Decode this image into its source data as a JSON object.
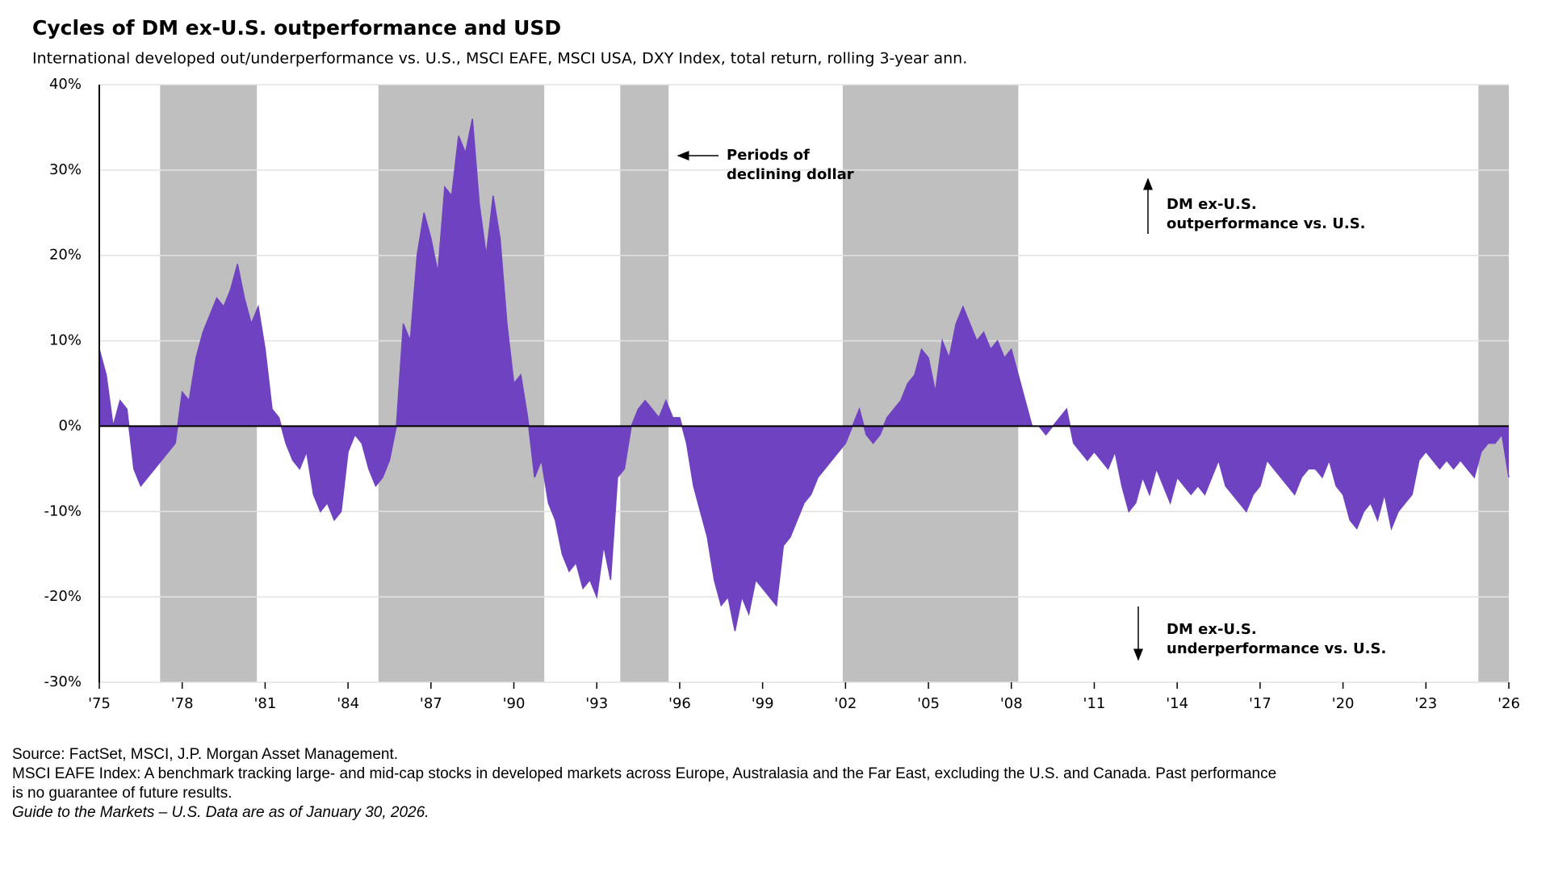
{
  "chart_data": {
    "type": "area",
    "title": "Cycles of DM ex-U.S. outperformance and USD",
    "subtitle": "International developed out/underperformance vs. U.S., MSCI EAFE, MSCI USA, DXY Index, total return, rolling 3-year ann.",
    "color": "#6f42c1",
    "shade_color": "#bfbfbf",
    "grid": true,
    "xlim": [
      1975,
      2026
    ],
    "ylim": [
      -30,
      40
    ],
    "xticks": [
      {
        "value": 1975,
        "label": "'75"
      },
      {
        "value": 1978,
        "label": "'78"
      },
      {
        "value": 1981,
        "label": "'81"
      },
      {
        "value": 1984,
        "label": "'84"
      },
      {
        "value": 1987,
        "label": "'87"
      },
      {
        "value": 1990,
        "label": "'90"
      },
      {
        "value": 1993,
        "label": "'93"
      },
      {
        "value": 1996,
        "label": "'96"
      },
      {
        "value": 1999,
        "label": "'99"
      },
      {
        "value": 2002,
        "label": "'02"
      },
      {
        "value": 2005,
        "label": "'05"
      },
      {
        "value": 2008,
        "label": "'08"
      },
      {
        "value": 2011,
        "label": "'11"
      },
      {
        "value": 2014,
        "label": "'14"
      },
      {
        "value": 2017,
        "label": "'17"
      },
      {
        "value": 2020,
        "label": "'20"
      },
      {
        "value": 2023,
        "label": "'23"
      },
      {
        "value": 2026,
        "label": "'26"
      }
    ],
    "yticks": [
      {
        "value": -30,
        "label": "-30%"
      },
      {
        "value": -20,
        "label": "-20%"
      },
      {
        "value": -10,
        "label": "-10%"
      },
      {
        "value": 0,
        "label": "0%"
      },
      {
        "value": 10,
        "label": "10%"
      },
      {
        "value": 20,
        "label": "20%"
      },
      {
        "value": 30,
        "label": "30%"
      },
      {
        "value": 40,
        "label": "40%"
      }
    ],
    "shaded_periods": [
      [
        1977.2,
        1980.7
      ],
      [
        1985.1,
        1991.1
      ],
      [
        1993.85,
        1995.6
      ],
      [
        2001.9,
        2008.25
      ],
      [
        2024.9,
        2026
      ]
    ],
    "annotations": [
      {
        "lines": [
          "Periods of",
          "declining dollar"
        ]
      },
      {
        "lines": [
          "DM ex-U.S.",
          "outperformance vs. U.S."
        ]
      },
      {
        "lines": [
          "DM ex-U.S.",
          "underperformance vs. U.S."
        ]
      }
    ],
    "x": [
      1975,
      1975.25,
      1975.5,
      1975.75,
      1976,
      1976.25,
      1976.5,
      1976.75,
      1977,
      1977.25,
      1977.5,
      1977.75,
      1978,
      1978.25,
      1978.5,
      1978.75,
      1979,
      1979.25,
      1979.5,
      1979.75,
      1980,
      1980.25,
      1980.5,
      1980.75,
      1981,
      1981.25,
      1981.5,
      1981.75,
      1982,
      1982.25,
      1982.5,
      1982.75,
      1983,
      1983.25,
      1983.5,
      1983.75,
      1984,
      1984.25,
      1984.5,
      1984.75,
      1985,
      1985.25,
      1985.5,
      1985.75,
      1986,
      1986.25,
      1986.5,
      1986.75,
      1987,
      1987.25,
      1987.5,
      1987.75,
      1988,
      1988.25,
      1988.5,
      1988.75,
      1989,
      1989.25,
      1989.5,
      1989.75,
      1990,
      1990.25,
      1990.5,
      1990.75,
      1991,
      1991.25,
      1991.5,
      1991.75,
      1992,
      1992.25,
      1992.5,
      1992.75,
      1993,
      1993.25,
      1993.5,
      1993.75,
      1994,
      1994.25,
      1994.5,
      1994.75,
      1995,
      1995.25,
      1995.5,
      1995.75,
      1996,
      1996.25,
      1996.5,
      1996.75,
      1997,
      1997.25,
      1997.5,
      1997.75,
      1998,
      1998.25,
      1998.5,
      1998.75,
      1999,
      1999.25,
      1999.5,
      1999.75,
      2000,
      2000.25,
      2000.5,
      2000.75,
      2001,
      2001.25,
      2001.5,
      2001.75,
      2002,
      2002.25,
      2002.5,
      2002.75,
      2003,
      2003.25,
      2003.5,
      2003.75,
      2004,
      2004.25,
      2004.5,
      2004.75,
      2005,
      2005.25,
      2005.5,
      2005.75,
      2006,
      2006.25,
      2006.5,
      2006.75,
      2007,
      2007.25,
      2007.5,
      2007.75,
      2008,
      2008.25,
      2008.5,
      2008.75,
      2009,
      2009.25,
      2009.5,
      2009.75,
      2010,
      2010.25,
      2010.5,
      2010.75,
      2011,
      2011.25,
      2011.5,
      2011.75,
      2012,
      2012.25,
      2012.5,
      2012.75,
      2013,
      2013.25,
      2013.5,
      2013.75,
      2014,
      2014.25,
      2014.5,
      2014.75,
      2015,
      2015.25,
      2015.5,
      2015.75,
      2016,
      2016.25,
      2016.5,
      2016.75,
      2017,
      2017.25,
      2017.5,
      2017.75,
      2018,
      2018.25,
      2018.5,
      2018.75,
      2019,
      2019.25,
      2019.5,
      2019.75,
      2020,
      2020.25,
      2020.5,
      2020.75,
      2021,
      2021.25,
      2021.5,
      2021.75,
      2022,
      2022.25,
      2022.5,
      2022.75,
      2023,
      2023.25,
      2023.5,
      2023.75,
      2024,
      2024.25,
      2024.5,
      2024.75,
      2025,
      2025.25,
      2025.5,
      2025.75,
      2026
    ],
    "values": [
      9,
      6,
      0,
      3,
      2,
      -5,
      -7,
      -6,
      -5,
      -4,
      -3,
      -2,
      4,
      3,
      8,
      11,
      13,
      15,
      14,
      16,
      19,
      15,
      12,
      14,
      9,
      2,
      1,
      -2,
      -4,
      -5,
      -3,
      -8,
      -10,
      -9,
      -11,
      -10,
      -3,
      -1,
      -2,
      -5,
      -7,
      -6,
      -4,
      0,
      12,
      10,
      20,
      25,
      22,
      18,
      28,
      27,
      34,
      32,
      36,
      26,
      20,
      27,
      22,
      12,
      5,
      6,
      1,
      -6,
      -4,
      -9,
      -11,
      -15,
      -17,
      -16,
      -19,
      -18,
      -20,
      -14,
      -18,
      -6,
      -5,
      0,
      2,
      3,
      2,
      1,
      3,
      1,
      1,
      -2,
      -7,
      -10,
      -13,
      -18,
      -21,
      -20,
      -24,
      -20,
      -22,
      -18,
      -19,
      -20,
      -21,
      -14,
      -13,
      -11,
      -9,
      -8,
      -6,
      -5,
      -4,
      -3,
      -2,
      0,
      2,
      -1,
      -2,
      -1,
      1,
      2,
      3,
      5,
      6,
      9,
      8,
      4,
      10,
      8,
      12,
      14,
      12,
      10,
      11,
      9,
      10,
      8,
      9,
      6,
      3,
      0,
      0,
      -1,
      0,
      1,
      2,
      -2,
      -3,
      -4,
      -3,
      -4,
      -5,
      -3,
      -7,
      -10,
      -9,
      -6,
      -8,
      -5,
      -7,
      -9,
      -6,
      -7,
      -8,
      -7,
      -8,
      -6,
      -4,
      -7,
      -8,
      -9,
      -10,
      -8,
      -7,
      -4,
      -5,
      -6,
      -7,
      -8,
      -6,
      -5,
      -5,
      -6,
      -4,
      -7,
      -8,
      -11,
      -12,
      -10,
      -9,
      -11,
      -8,
      -12,
      -10,
      -9,
      -8,
      -4,
      -3,
      -4,
      -5,
      -4,
      -5,
      -4,
      -5,
      -6,
      -3,
      -2,
      -2,
      -1,
      -6
    ],
    "footnotes": [
      "Source: FactSet, MSCI, J.P. Morgan Asset Management.",
      "MSCI EAFE Index: A benchmark tracking large- and mid-cap stocks in developed markets across Europe, Australasia and the Far East, excluding the U.S. and Canada. Past performance",
      "is no guarantee of future results.",
      "Guide to the Markets – U.S. Data are as of January 30, 2026."
    ]
  }
}
